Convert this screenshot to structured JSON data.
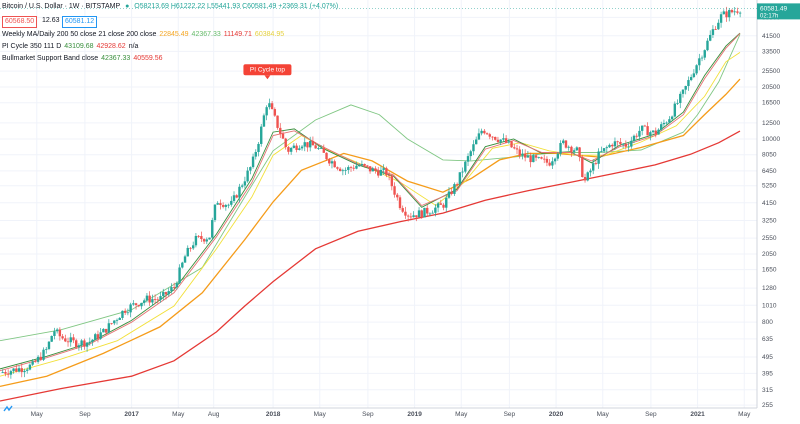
{
  "header": {
    "symbol": "Bitcoin / U.S. Dollar · 1W · BITSTAMP",
    "ohlc": "O58213.69 H61222.22 L55441.93 C60581.49 +2369.31 (+4.07%)",
    "sell_price": "60568.50",
    "spread": "12.63",
    "buy_price": "60581.12"
  },
  "indicators": [
    {
      "name": "Weekly MA/Daily 200 50 close 21 close 200 close",
      "values": [
        {
          "text": "22845.49",
          "color": "#f5a623"
        },
        {
          "text": "42367.33",
          "color": "#66bb6a"
        },
        {
          "text": "11149.71",
          "color": "#e53935"
        },
        {
          "text": "60384.95",
          "color": "#e6d13d"
        }
      ]
    },
    {
      "name": "PI Cycle 350 111 D",
      "values": [
        {
          "text": "43109.68",
          "color": "#388e3c"
        },
        {
          "text": "42928.62",
          "color": "#e53935"
        },
        {
          "text": "n/a",
          "color": "#131722"
        }
      ]
    },
    {
      "name": "Bullmarket Support Band close",
      "values": [
        {
          "text": "42367.33",
          "color": "#388e3c"
        },
        {
          "text": "40559.56",
          "color": "#e53935"
        }
      ]
    }
  ],
  "annotation": "PI Cycle top",
  "price_axis": {
    "currency": "USD",
    "last_price": "60581.49",
    "countdown": "02:17h"
  },
  "colors": {
    "up": "#26a69a",
    "down": "#ef5350",
    "ma_green": "#81c784",
    "ma_orange": "#f59c1a",
    "ma_red": "#e53935",
    "ma_yellow": "#f2e03a",
    "label_red": "#f44336"
  },
  "chart_data": {
    "type": "line",
    "title": "Bitcoin / U.S. Dollar · 1W · BITSTAMP",
    "y_scale": "log",
    "ylim": [
      245,
      68000
    ],
    "y_ticks": [
      255,
      315,
      395,
      495,
      635,
      800,
      1010,
      1280,
      1650,
      2050,
      2550,
      3250,
      4150,
      5250,
      6450,
      8050,
      10000,
      12500,
      16500,
      20500,
      25500,
      33500,
      41500,
      53500
    ],
    "x_ticks": [
      {
        "label": "May",
        "t": 2016.33
      },
      {
        "label": "Sep",
        "t": 2016.67
      },
      {
        "label": "2017",
        "t": 2017.0
      },
      {
        "label": "May",
        "t": 2017.33
      },
      {
        "label": "Aug",
        "t": 2017.58
      },
      {
        "label": "2018",
        "t": 2018.0
      },
      {
        "label": "May",
        "t": 2018.33
      },
      {
        "label": "Sep",
        "t": 2018.67
      },
      {
        "label": "2019",
        "t": 2019.0
      },
      {
        "label": "May",
        "t": 2019.33
      },
      {
        "label": "Sep",
        "t": 2019.67
      },
      {
        "label": "2020",
        "t": 2020.0
      },
      {
        "label": "May",
        "t": 2020.33
      },
      {
        "label": "Sep",
        "t": 2020.67
      },
      {
        "label": "2021",
        "t": 2021.0
      },
      {
        "label": "May",
        "t": 2021.33
      }
    ],
    "xlim": [
      2016.07,
      2021.42
    ],
    "price": [
      [
        2016.07,
        400
      ],
      [
        2016.2,
        420
      ],
      [
        2016.3,
        440
      ],
      [
        2016.4,
        550
      ],
      [
        2016.45,
        720
      ],
      [
        2016.5,
        650
      ],
      [
        2016.6,
        600
      ],
      [
        2016.7,
        610
      ],
      [
        2016.8,
        700
      ],
      [
        2016.95,
        950
      ],
      [
        2017.0,
        1000
      ],
      [
        2017.1,
        1100
      ],
      [
        2017.2,
        1100
      ],
      [
        2017.3,
        1300
      ],
      [
        2017.38,
        2000
      ],
      [
        2017.45,
        2500
      ],
      [
        2017.55,
        2600
      ],
      [
        2017.6,
        4300
      ],
      [
        2017.7,
        4000
      ],
      [
        2017.8,
        5800
      ],
      [
        2017.85,
        7000
      ],
      [
        2017.9,
        10000
      ],
      [
        2017.96,
        17000
      ],
      [
        2018.0,
        14000
      ],
      [
        2018.05,
        11000
      ],
      [
        2018.1,
        8500
      ],
      [
        2018.2,
        9500
      ],
      [
        2018.3,
        9000
      ],
      [
        2018.4,
        7500
      ],
      [
        2018.5,
        6500
      ],
      [
        2018.6,
        7000
      ],
      [
        2018.7,
        6500
      ],
      [
        2018.8,
        6300
      ],
      [
        2018.9,
        4000
      ],
      [
        2018.96,
        3500
      ],
      [
        2019.05,
        3600
      ],
      [
        2019.2,
        4000
      ],
      [
        2019.3,
        5500
      ],
      [
        2019.4,
        8500
      ],
      [
        2019.48,
        11500
      ],
      [
        2019.55,
        10500
      ],
      [
        2019.65,
        9500
      ],
      [
        2019.75,
        8000
      ],
      [
        2019.85,
        7500
      ],
      [
        2019.95,
        7200
      ],
      [
        2020.05,
        9500
      ],
      [
        2020.15,
        8500
      ],
      [
        2020.2,
        5500
      ],
      [
        2020.3,
        8000
      ],
      [
        2020.4,
        9500
      ],
      [
        2020.5,
        9200
      ],
      [
        2020.6,
        11500
      ],
      [
        2020.7,
        10800
      ],
      [
        2020.8,
        13500
      ],
      [
        2020.9,
        19000
      ],
      [
        2021.0,
        29000
      ],
      [
        2021.05,
        35000
      ],
      [
        2021.12,
        47000
      ],
      [
        2021.17,
        55000
      ],
      [
        2021.25,
        58000
      ],
      [
        2021.3,
        60581
      ]
    ],
    "series": [
      {
        "color": "#81c784",
        "points": [
          [
            2016.07,
            620
          ],
          [
            2016.5,
            720
          ],
          [
            2017.0,
            950
          ],
          [
            2017.5,
            1700
          ],
          [
            2017.8,
            4500
          ],
          [
            2018.0,
            8500
          ],
          [
            2018.3,
            13000
          ],
          [
            2018.55,
            16000
          ],
          [
            2018.75,
            14000
          ],
          [
            2018.95,
            10000
          ],
          [
            2019.2,
            7500
          ],
          [
            2019.4,
            7400
          ],
          [
            2019.7,
            7800
          ],
          [
            2020.0,
            8300
          ],
          [
            2020.3,
            8300
          ],
          [
            2020.6,
            8600
          ],
          [
            2020.9,
            11000
          ],
          [
            2021.0,
            14000
          ],
          [
            2021.15,
            22000
          ],
          [
            2021.3,
            42367
          ]
        ]
      },
      {
        "color": "#f59c1a",
        "points": [
          [
            2016.07,
            330
          ],
          [
            2016.4,
            380
          ],
          [
            2016.8,
            520
          ],
          [
            2017.2,
            750
          ],
          [
            2017.5,
            1200
          ],
          [
            2017.8,
            2500
          ],
          [
            2018.0,
            4200
          ],
          [
            2018.2,
            6500
          ],
          [
            2018.5,
            8200
          ],
          [
            2018.7,
            7400
          ],
          [
            2018.95,
            5600
          ],
          [
            2019.2,
            4800
          ],
          [
            2019.4,
            5800
          ],
          [
            2019.6,
            7500
          ],
          [
            2019.8,
            8200
          ],
          [
            2020.0,
            8200
          ],
          [
            2020.3,
            7800
          ],
          [
            2020.6,
            8900
          ],
          [
            2020.9,
            10500
          ],
          [
            2021.05,
            14000
          ],
          [
            2021.2,
            18500
          ],
          [
            2021.3,
            22845
          ]
        ]
      },
      {
        "color": "#e53935",
        "points": [
          [
            2016.07,
            270
          ],
          [
            2016.5,
            320
          ],
          [
            2017.0,
            380
          ],
          [
            2017.3,
            470
          ],
          [
            2017.6,
            700
          ],
          [
            2017.8,
            1000
          ],
          [
            2018.0,
            1400
          ],
          [
            2018.3,
            2200
          ],
          [
            2018.6,
            2800
          ],
          [
            2018.9,
            3200
          ],
          [
            2019.2,
            3600
          ],
          [
            2019.5,
            4300
          ],
          [
            2019.8,
            4900
          ],
          [
            2020.1,
            5500
          ],
          [
            2020.4,
            6200
          ],
          [
            2020.7,
            7000
          ],
          [
            2020.95,
            8100
          ],
          [
            2021.15,
            9500
          ],
          [
            2021.3,
            11149
          ]
        ]
      },
      {
        "color": "#f2e03a",
        "points": [
          [
            2016.07,
            380
          ],
          [
            2016.5,
            480
          ],
          [
            2016.9,
            620
          ],
          [
            2017.3,
            1000
          ],
          [
            2017.6,
            2200
          ],
          [
            2017.85,
            4500
          ],
          [
            2018.0,
            8000
          ],
          [
            2018.2,
            10500
          ],
          [
            2018.4,
            8500
          ],
          [
            2018.6,
            7200
          ],
          [
            2018.9,
            5500
          ],
          [
            2019.15,
            4000
          ],
          [
            2019.35,
            5500
          ],
          [
            2019.55,
            8800
          ],
          [
            2019.75,
            9500
          ],
          [
            2019.95,
            8500
          ],
          [
            2020.15,
            8000
          ],
          [
            2020.35,
            8000
          ],
          [
            2020.6,
            9600
          ],
          [
            2020.85,
            12000
          ],
          [
            2021.05,
            18000
          ],
          [
            2021.2,
            29000
          ],
          [
            2021.3,
            33000
          ]
        ]
      },
      {
        "color": "#388e3c",
        "points": [
          [
            2016.07,
            420
          ],
          [
            2016.4,
            500
          ],
          [
            2016.7,
            600
          ],
          [
            2017.0,
            820
          ],
          [
            2017.3,
            1250
          ],
          [
            2017.6,
            2700
          ],
          [
            2017.85,
            5800
          ],
          [
            2018.0,
            11000
          ],
          [
            2018.15,
            11500
          ],
          [
            2018.35,
            8800
          ],
          [
            2018.6,
            7000
          ],
          [
            2018.85,
            6000
          ],
          [
            2019.05,
            3900
          ],
          [
            2019.3,
            5000
          ],
          [
            2019.5,
            9000
          ],
          [
            2019.7,
            10000
          ],
          [
            2019.9,
            8200
          ],
          [
            2020.1,
            8400
          ],
          [
            2020.25,
            7200
          ],
          [
            2020.45,
            9200
          ],
          [
            2020.7,
            10700
          ],
          [
            2020.9,
            14500
          ],
          [
            2021.05,
            24000
          ],
          [
            2021.2,
            36000
          ],
          [
            2021.3,
            43109
          ]
        ]
      },
      {
        "color": "#e57373",
        "points": [
          [
            2016.07,
            410
          ],
          [
            2016.4,
            490
          ],
          [
            2016.7,
            590
          ],
          [
            2017.0,
            800
          ],
          [
            2017.3,
            1200
          ],
          [
            2017.6,
            2600
          ],
          [
            2017.85,
            5500
          ],
          [
            2018.0,
            10500
          ],
          [
            2018.15,
            11200
          ],
          [
            2018.35,
            9000
          ],
          [
            2018.6,
            7100
          ],
          [
            2018.85,
            6100
          ],
          [
            2019.05,
            4000
          ],
          [
            2019.3,
            4900
          ],
          [
            2019.5,
            8700
          ],
          [
            2019.7,
            9800
          ],
          [
            2019.9,
            8300
          ],
          [
            2020.1,
            8300
          ],
          [
            2020.25,
            7400
          ],
          [
            2020.45,
            9000
          ],
          [
            2020.7,
            10500
          ],
          [
            2020.9,
            14000
          ],
          [
            2021.05,
            23000
          ],
          [
            2021.2,
            35000
          ],
          [
            2021.3,
            42928
          ]
        ]
      }
    ]
  }
}
